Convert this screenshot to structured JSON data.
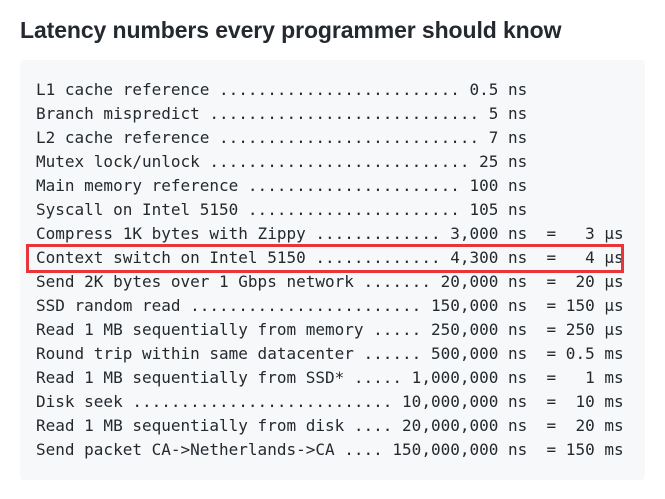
{
  "page": {
    "title": "Latency numbers every programmer should know"
  },
  "theme": {
    "page_background": "#ffffff",
    "title_text": "#24292f",
    "code_background": "#f6f8fa",
    "code_text": "#24292e",
    "highlight_border": "#e8353a"
  },
  "code_block": {
    "lines": [
      {
        "label": "L1 cache reference",
        "ns": "0.5",
        "eq": null,
        "highlighted": false,
        "text": "L1 cache reference ......................... 0.5 ns"
      },
      {
        "label": "Branch mispredict",
        "ns": "5",
        "eq": null,
        "highlighted": false,
        "text": "Branch mispredict ............................ 5 ns"
      },
      {
        "label": "L2 cache reference",
        "ns": "7",
        "eq": null,
        "highlighted": false,
        "text": "L2 cache reference ........................... 7 ns"
      },
      {
        "label": "Mutex lock/unlock",
        "ns": "25",
        "eq": null,
        "highlighted": false,
        "text": "Mutex lock/unlock ........................... 25 ns"
      },
      {
        "label": "Main memory reference",
        "ns": "100",
        "eq": null,
        "highlighted": false,
        "text": "Main memory reference ...................... 100 ns"
      },
      {
        "label": "Syscall on Intel 5150",
        "ns": "105",
        "eq": null,
        "highlighted": false,
        "text": "Syscall on Intel 5150 ...................... 105 ns"
      },
      {
        "label": "Compress 1K bytes with Zippy",
        "ns": "3,000",
        "eq": "3 µs",
        "highlighted": false,
        "text": "Compress 1K bytes with Zippy ............. 3,000 ns  =   3 µs"
      },
      {
        "label": "Context switch on Intel 5150",
        "ns": "4,300",
        "eq": "4 µs",
        "highlighted": true,
        "text": "Context switch on Intel 5150 ............. 4,300 ns  =   4 µs"
      },
      {
        "label": "Send 2K bytes over 1 Gbps network",
        "ns": "20,000",
        "eq": "20 µs",
        "highlighted": false,
        "text": "Send 2K bytes over 1 Gbps network ....... 20,000 ns  =  20 µs"
      },
      {
        "label": "SSD random read",
        "ns": "150,000",
        "eq": "150 µs",
        "highlighted": false,
        "text": "SSD random read ........................ 150,000 ns  = 150 µs"
      },
      {
        "label": "Read 1 MB sequentially from memory",
        "ns": "250,000",
        "eq": "250 µs",
        "highlighted": false,
        "text": "Read 1 MB sequentially from memory ..... 250,000 ns  = 250 µs"
      },
      {
        "label": "Round trip within same datacenter",
        "ns": "500,000",
        "eq": "0.5 ms",
        "highlighted": false,
        "text": "Round trip within same datacenter ...... 500,000 ns  = 0.5 ms"
      },
      {
        "label": "Read 1 MB sequentially from SSD*",
        "ns": "1,000,000",
        "eq": "1 ms",
        "highlighted": false,
        "text": "Read 1 MB sequentially from SSD* ..... 1,000,000 ns  =   1 ms"
      },
      {
        "label": "Disk seek",
        "ns": "10,000,000",
        "eq": "10 ms",
        "highlighted": false,
        "text": "Disk seek ........................... 10,000,000 ns  =  10 ms"
      },
      {
        "label": "Read 1 MB sequentially from disk",
        "ns": "20,000,000",
        "eq": "20 ms",
        "highlighted": false,
        "text": "Read 1 MB sequentially from disk .... 20,000,000 ns  =  20 ms"
      },
      {
        "label": "Send packet CA->Netherlands->CA",
        "ns": "150,000,000",
        "eq": "150 ms",
        "highlighted": false,
        "text": "Send packet CA->Netherlands->CA .... 150,000,000 ns  = 150 ms"
      }
    ]
  }
}
